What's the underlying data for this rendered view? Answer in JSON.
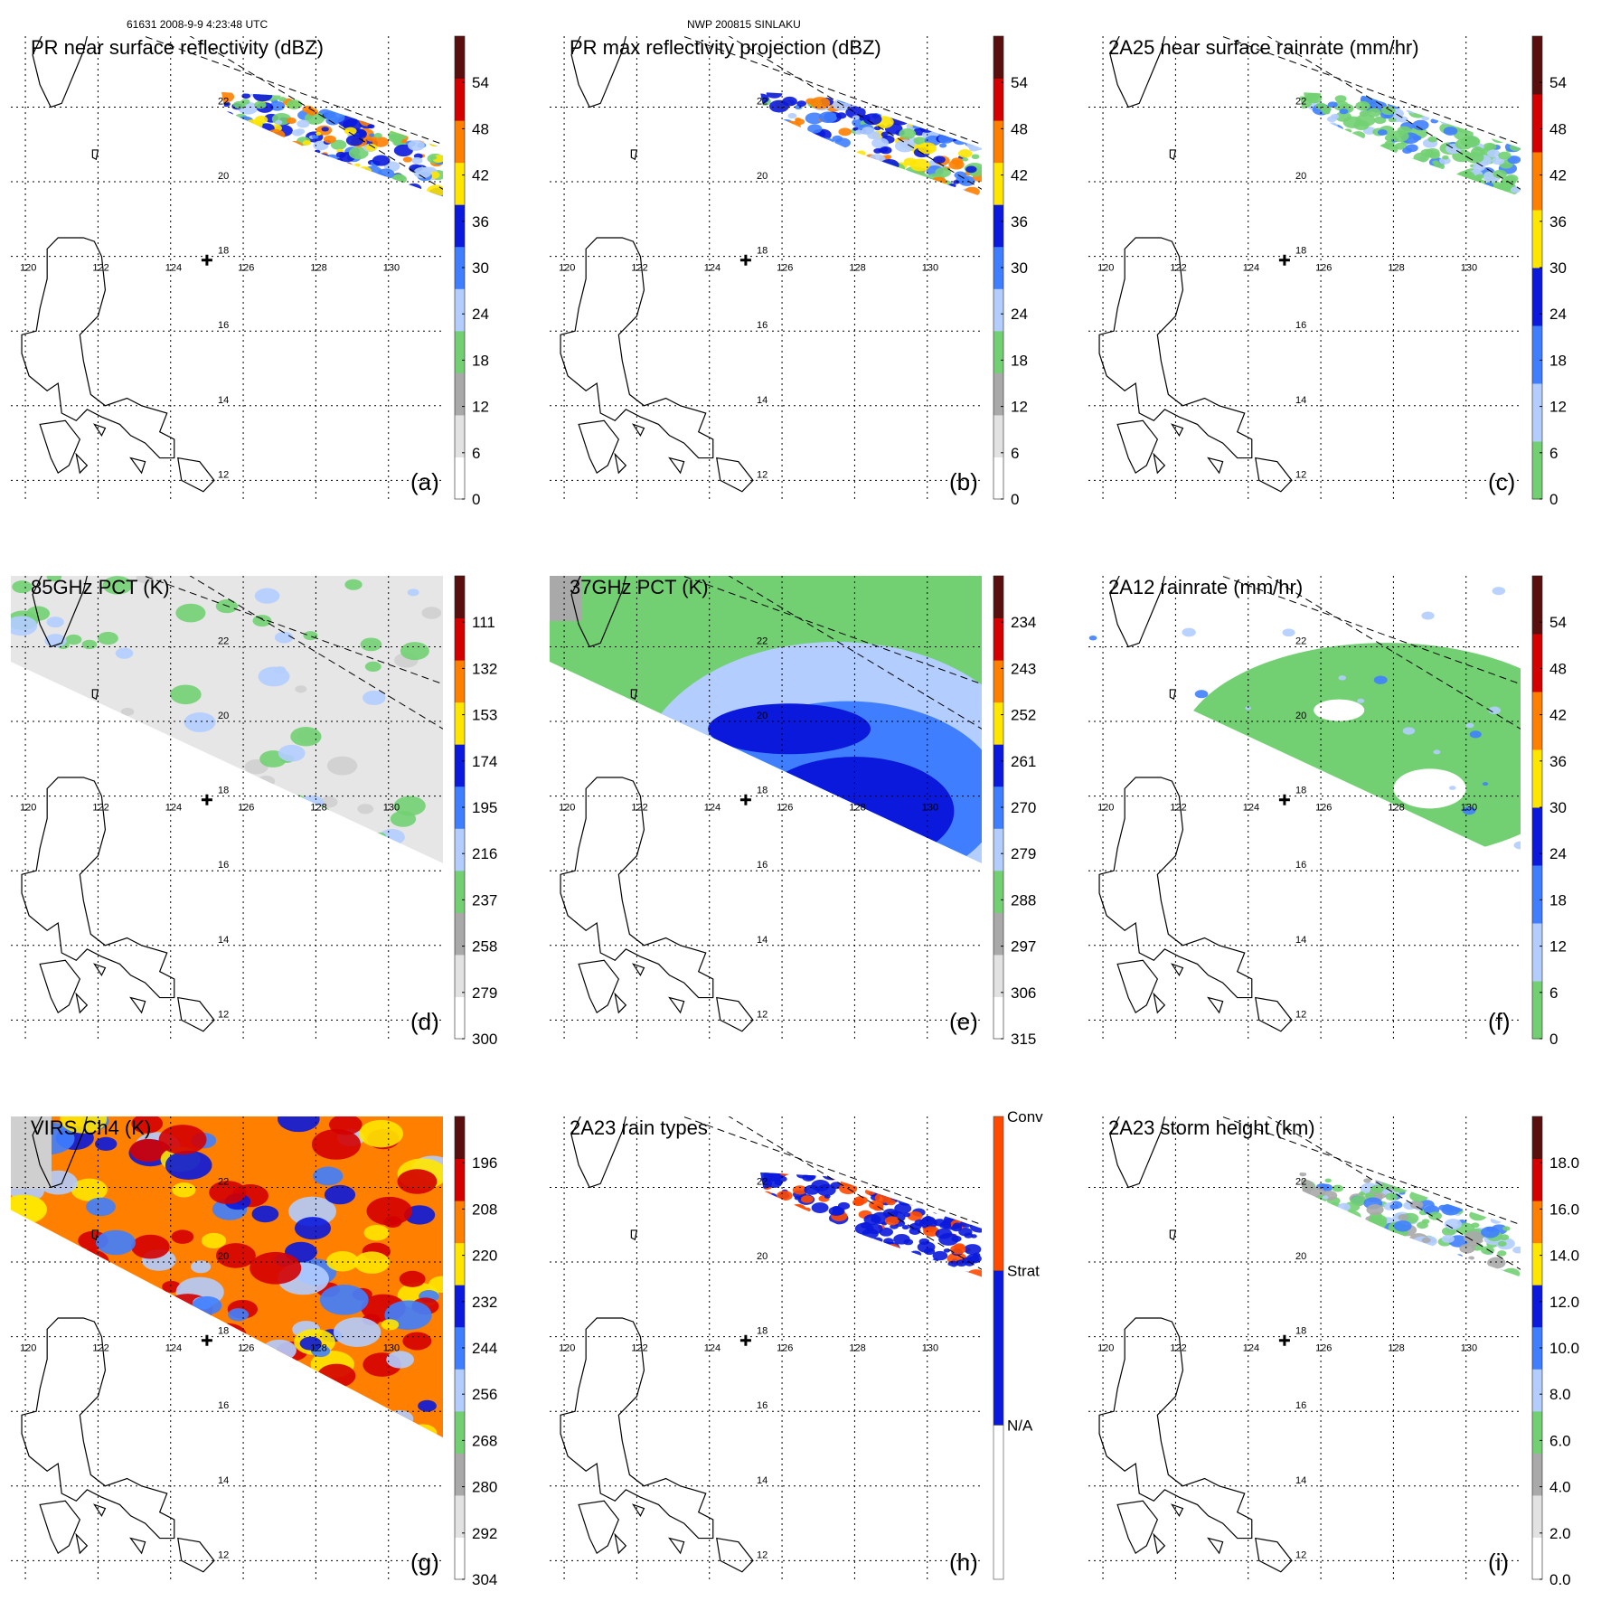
{
  "header": {
    "orbit_time": "61631 2008-9-9 4:23:48 UTC",
    "storm": "NWP 200815 SINLAKU"
  },
  "map": {
    "lon_ticks": [
      "120",
      "122",
      "124",
      "126",
      "128",
      "130"
    ],
    "lat_ticks": [
      "22",
      "20",
      "18",
      "16",
      "14",
      "12"
    ],
    "storm_center_marker": "plus-icon"
  },
  "panels": [
    {
      "id": "a",
      "label": "(a)",
      "title": "PR near surface reflectivity (dBZ)",
      "field": "swath",
      "colorbar": {
        "ticks": [
          "0",
          "6",
          "12",
          "18",
          "24",
          "30",
          "36",
          "42",
          "48",
          "54"
        ],
        "colors": [
          "#ffffff",
          "#e2e2e2",
          "#a9a9a9",
          "#72d072",
          "#b3cdff",
          "#3f7fff",
          "#0a19dc",
          "#ffe600",
          "#ff7f00",
          "#d40000",
          "#5a0f0f"
        ]
      }
    },
    {
      "id": "b",
      "label": "(b)",
      "title": "PR max reflectivity projection (dBZ)",
      "field": "swath",
      "colorbar": {
        "ticks": [
          "0",
          "6",
          "12",
          "18",
          "24",
          "30",
          "36",
          "42",
          "48",
          "54"
        ],
        "colors": [
          "#ffffff",
          "#e2e2e2",
          "#a9a9a9",
          "#72d072",
          "#b3cdff",
          "#3f7fff",
          "#0a19dc",
          "#ffe600",
          "#ff7f00",
          "#d40000",
          "#5a0f0f"
        ]
      }
    },
    {
      "id": "c",
      "label": "(c)",
      "title": "2A25 near surface rainrate (mm/hr)",
      "field": "swath",
      "colorbar": {
        "ticks": [
          "0",
          "6",
          "12",
          "18",
          "24",
          "30",
          "36",
          "42",
          "48",
          "54"
        ],
        "colors": [
          "#72d072",
          "#b3cdff",
          "#3f7fff",
          "#0a19dc",
          "#ffe600",
          "#ff7f00",
          "#d40000",
          "#5a0f0f"
        ]
      }
    },
    {
      "id": "d",
      "label": "(d)",
      "title": "85GHz PCT (K)",
      "field": "tmi",
      "colorbar": {
        "ticks": [
          "300",
          "279",
          "258",
          "237",
          "216",
          "195",
          "174",
          "153",
          "132",
          "111"
        ],
        "colors": [
          "#ffffff",
          "#e2e2e2",
          "#a9a9a9",
          "#72d072",
          "#b3cdff",
          "#3f7fff",
          "#0a19dc",
          "#ffe600",
          "#ff7f00",
          "#d40000",
          "#5a0f0f"
        ]
      }
    },
    {
      "id": "e",
      "label": "(e)",
      "title": "37GHz PCT (K)",
      "field": "tmi",
      "colorbar": {
        "ticks": [
          "315",
          "306",
          "297",
          "288",
          "279",
          "270",
          "261",
          "252",
          "243",
          "234"
        ],
        "colors": [
          "#ffffff",
          "#e2e2e2",
          "#a9a9a9",
          "#72d072",
          "#b3cdff",
          "#3f7fff",
          "#0a19dc",
          "#ffe600",
          "#ff7f00",
          "#d40000",
          "#5a0f0f"
        ]
      }
    },
    {
      "id": "f",
      "label": "(f)",
      "title": "2A12 rainrate (mm/hr)",
      "field": "tmi",
      "colorbar": {
        "ticks": [
          "0",
          "6",
          "12",
          "18",
          "24",
          "30",
          "36",
          "42",
          "48",
          "54"
        ],
        "colors": [
          "#72d072",
          "#b3cdff",
          "#3f7fff",
          "#0a19dc",
          "#ffe600",
          "#ff7f00",
          "#d40000",
          "#5a0f0f"
        ]
      }
    },
    {
      "id": "g",
      "label": "(g)",
      "title": "VIRS Ch4 (K)",
      "field": "virs",
      "colorbar": {
        "ticks": [
          "304",
          "292",
          "280",
          "268",
          "256",
          "244",
          "232",
          "220",
          "208",
          "196"
        ],
        "colors": [
          "#ffffff",
          "#e2e2e2",
          "#a9a9a9",
          "#72d072",
          "#b3cdff",
          "#3f7fff",
          "#0a19dc",
          "#ffe600",
          "#ff7f00",
          "#d40000",
          "#5a0f0f"
        ]
      }
    },
    {
      "id": "h",
      "label": "(h)",
      "title": "2A23 rain types",
      "field": "swath",
      "colorbar": {
        "categories": [
          "N/A",
          "Strat",
          "Conv"
        ],
        "colors": [
          "#ffffff",
          "#0a19dc",
          "#ff4a00"
        ]
      }
    },
    {
      "id": "i",
      "label": "(i)",
      "title": "2A23 storm height (km)",
      "field": "swath",
      "colorbar": {
        "ticks": [
          "0.0",
          "2.0",
          "4.0",
          "6.0",
          "8.0",
          "10.0",
          "12.0",
          "14.0",
          "16.0",
          "18.0"
        ],
        "colors": [
          "#ffffff",
          "#e2e2e2",
          "#a9a9a9",
          "#72d072",
          "#b3cdff",
          "#3f7fff",
          "#0a19dc",
          "#ffe600",
          "#ff7f00",
          "#d40000",
          "#5a0f0f"
        ]
      }
    }
  ]
}
